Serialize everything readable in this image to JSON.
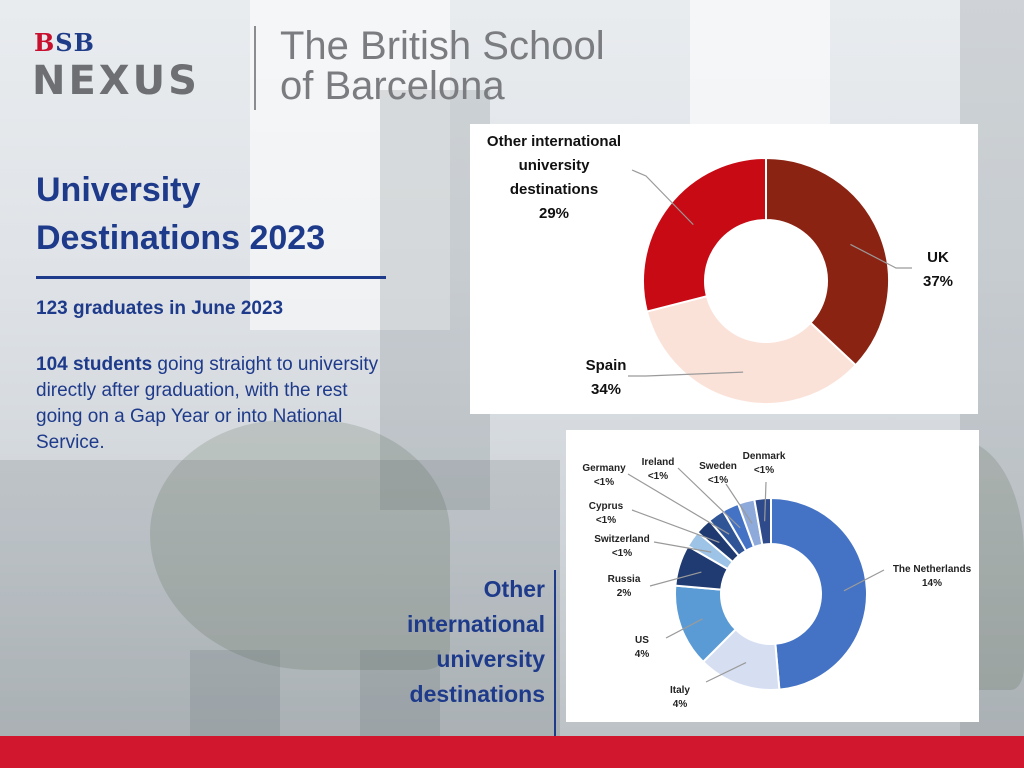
{
  "brand": {
    "bsb": "BSB",
    "nexus": "NEXUS",
    "school_line1": "The British School",
    "school_line2": "of Barcelona"
  },
  "intro": {
    "title_line1": "University",
    "title_line2": "Destinations 2023",
    "graduates": "123 graduates in June 2023",
    "students_bold": "104 students",
    "students_rest": " going straight to university directly after graduation, with the rest going on a Gap Year or into National Service."
  },
  "side_title": [
    "Other",
    "international",
    "university",
    "destinations"
  ],
  "chart_data": [
    {
      "type": "pie",
      "title": "",
      "slices": [
        {
          "label": "UK",
          "value": 37,
          "display": "37%",
          "color": "#8b2312"
        },
        {
          "label": "Spain",
          "value": 34,
          "display": "34%",
          "color": "#fbe2d9"
        },
        {
          "label": "Other international university destinations",
          "value": 29,
          "display": "29%",
          "color": "#c80a14"
        }
      ]
    },
    {
      "type": "pie",
      "title": "Other international university destinations",
      "slices": [
        {
          "label": "The Netherlands",
          "value": 14,
          "display": "14%",
          "color": "#4472c4"
        },
        {
          "label": "Italy",
          "value": 4,
          "display": "4%",
          "color": "#d6dff2"
        },
        {
          "label": "US",
          "value": 4,
          "display": "4%",
          "color": "#5b9bd5"
        },
        {
          "label": "Russia",
          "value": 2,
          "display": "2%",
          "color": "#203a72"
        },
        {
          "label": "Switzerland",
          "value": 0.8,
          "display": "<1%",
          "color": "#9dc3e6"
        },
        {
          "label": "Cyprus",
          "value": 0.8,
          "display": "<1%",
          "color": "#1f3a70"
        },
        {
          "label": "Germany",
          "value": 0.8,
          "display": "<1%",
          "color": "#2f5597"
        },
        {
          "label": "Ireland",
          "value": 0.8,
          "display": "<1%",
          "color": "#4472c4"
        },
        {
          "label": "Sweden",
          "value": 0.8,
          "display": "<1%",
          "color": "#8eaadb"
        },
        {
          "label": "Denmark",
          "value": 0.8,
          "display": "<1%",
          "color": "#2e4a8a"
        }
      ]
    }
  ],
  "colors": {
    "navy": "#1e3a8a",
    "footer_red": "#d0172d"
  }
}
